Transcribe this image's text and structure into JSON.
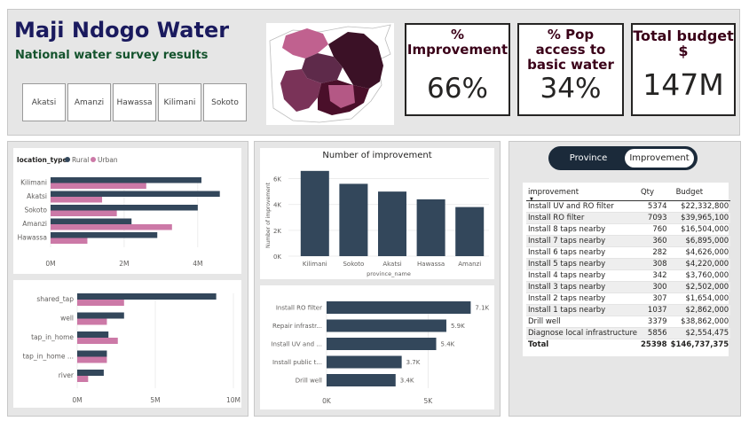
{
  "header": {
    "title": "Maji Ndogo Water",
    "subtitle": "National water survey results"
  },
  "slicers": [
    "Akatsi",
    "Amanzi",
    "Hawassa",
    "Kilimani",
    "Sokoto"
  ],
  "map": {
    "colors": {
      "pink": "#c0618f",
      "dark_purple": "#3b1126",
      "mid_purple": "#5e2a4a",
      "plum": "#7a3358",
      "deep": "#4a0f2a"
    }
  },
  "kpis": {
    "improvement": {
      "title": "% Improvement",
      "value": "66%"
    },
    "pop_access": {
      "title": "% Pop access to basic water",
      "value": "34%"
    },
    "budget": {
      "title": "Total budget $",
      "value": "147M"
    }
  },
  "colors": {
    "dark": "#33475b",
    "pink": "#cc79a7"
  },
  "location_chart": {
    "chart_data": {
      "type": "bar",
      "orientation": "horizontal",
      "legend_title": "location_type",
      "legend_placement": "top-left",
      "categories": [
        "Kilimani",
        "Akatsi",
        "Sokoto",
        "Amanzi",
        "Hawassa"
      ],
      "series": [
        {
          "name": "Rural",
          "values": [
            4.1,
            4.6,
            4.0,
            2.2,
            2.9
          ]
        },
        {
          "name": "Urban",
          "values": [
            2.6,
            1.4,
            1.8,
            3.3,
            1.0
          ]
        }
      ],
      "xlim": [
        0,
        4.8
      ],
      "xticks": [
        {
          "v": 0,
          "label": "0M"
        },
        {
          "v": 2,
          "label": "2M"
        },
        {
          "v": 4,
          "label": "4M"
        }
      ],
      "unit": "M"
    }
  },
  "source_chart": {
    "chart_data": {
      "type": "bar",
      "orientation": "horizontal",
      "categories": [
        "shared_tap",
        "well",
        "tap_in_home",
        "tap_in_home ...",
        "river"
      ],
      "series": [
        {
          "name": "Rural",
          "values": [
            8.9,
            3.0,
            2.0,
            1.9,
            1.7
          ]
        },
        {
          "name": "Urban",
          "values": [
            3.0,
            1.9,
            2.6,
            1.9,
            0.7
          ]
        }
      ],
      "xlim": [
        0,
        10
      ],
      "xticks": [
        {
          "v": 0,
          "label": "0M"
        },
        {
          "v": 5,
          "label": "5M"
        },
        {
          "v": 10,
          "label": "10M"
        }
      ],
      "unit": "M"
    }
  },
  "improvement_chart": {
    "chart_data": {
      "type": "bar",
      "title": "Number of improvement",
      "xlabel": "province_name",
      "ylabel": "Number of improvement",
      "categories": [
        "Kilimani",
        "Sokoto",
        "Akatsi",
        "Hawassa",
        "Amanzi"
      ],
      "values": [
        6600,
        5600,
        5000,
        4400,
        3800
      ],
      "ylim": [
        0,
        7000
      ],
      "yticks": [
        {
          "v": 0,
          "label": "0K"
        },
        {
          "v": 2000,
          "label": "2K"
        },
        {
          "v": 4000,
          "label": "4K"
        },
        {
          "v": 6000,
          "label": "6K"
        }
      ]
    }
  },
  "type_chart": {
    "chart_data": {
      "type": "bar",
      "orientation": "horizontal",
      "categories": [
        "Install RO filter",
        "Repair infrastr...",
        "Install UV and ...",
        "Install public t...",
        "Drill well"
      ],
      "values": [
        7100,
        5900,
        5400,
        3700,
        3400
      ],
      "data_labels": [
        "7.1K",
        "5.9K",
        "5.4K",
        "3.7K",
        "3.4K"
      ],
      "xlim": [
        0,
        8000
      ],
      "xticks": [
        {
          "v": 0,
          "label": "0K"
        },
        {
          "v": 5000,
          "label": "5K"
        }
      ]
    }
  },
  "toggle": {
    "option_a": "Province",
    "option_b": "Improvement",
    "selected": "Improvement"
  },
  "budget_table": {
    "headers": {
      "improvement": "improvement",
      "qty": "Qty",
      "budget": "Budget"
    },
    "rows": [
      {
        "improvement": "Install UV and RO filter",
        "qty": "5374",
        "budget": "$22,332,800"
      },
      {
        "improvement": "Install RO filter",
        "qty": "7093",
        "budget": "$39,965,100"
      },
      {
        "improvement": "Install 8 taps nearby",
        "qty": "760",
        "budget": "$16,504,000"
      },
      {
        "improvement": "Install 7 taps nearby",
        "qty": "360",
        "budget": "$6,895,000"
      },
      {
        "improvement": "Install 6 taps nearby",
        "qty": "282",
        "budget": "$4,626,000"
      },
      {
        "improvement": "Install 5 taps nearby",
        "qty": "308",
        "budget": "$4,220,000"
      },
      {
        "improvement": "Install 4 taps nearby",
        "qty": "342",
        "budget": "$3,760,000"
      },
      {
        "improvement": "Install 3 taps nearby",
        "qty": "300",
        "budget": "$2,502,000"
      },
      {
        "improvement": "Install 2 taps nearby",
        "qty": "307",
        "budget": "$1,654,000"
      },
      {
        "improvement": "Install 1 taps nearby",
        "qty": "1037",
        "budget": "$2,862,000"
      },
      {
        "improvement": "Drill well",
        "qty": "3379",
        "budget": "$38,862,000"
      },
      {
        "improvement": "Diagnose local infrastructure",
        "qty": "5856",
        "budget": "$2,554,475"
      }
    ],
    "total": {
      "label": "Total",
      "qty": "25398",
      "budget": "$146,737,375"
    }
  }
}
